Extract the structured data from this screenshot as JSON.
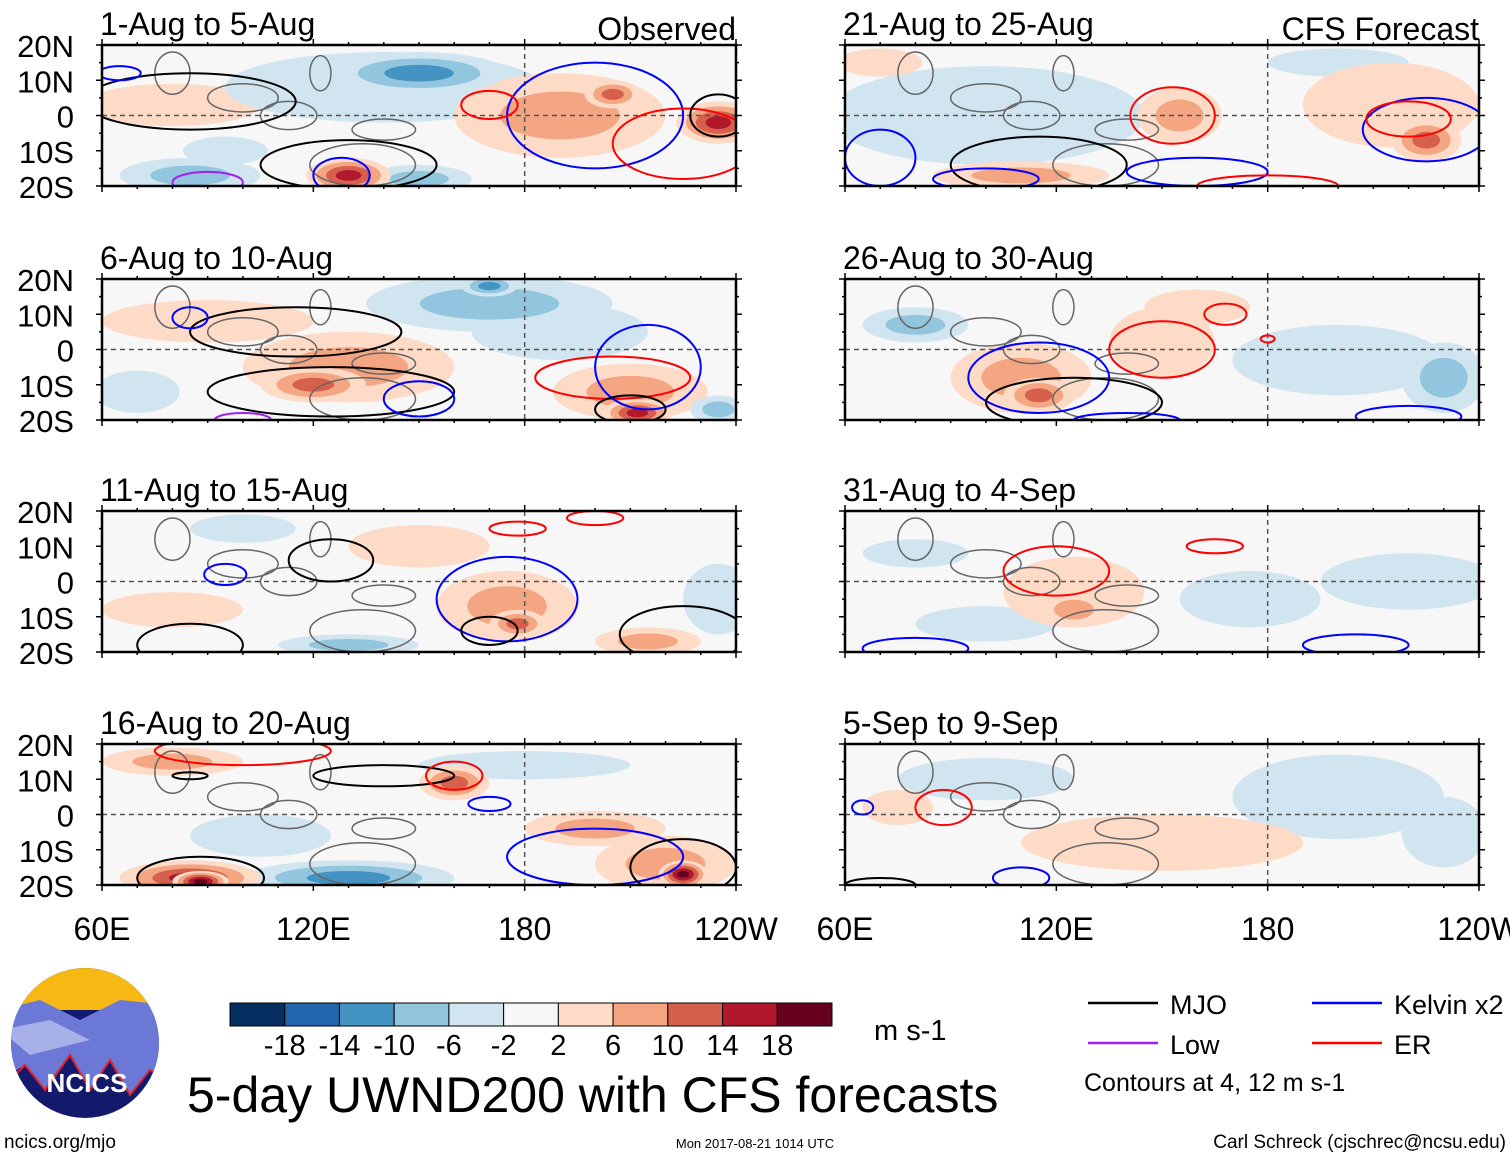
{
  "title": "5-day UWND200 with CFS forecasts",
  "footer": {
    "left": "ncics.org/mjo",
    "center": "Mon 2017-08-21 1014 UTC",
    "right": "Carl Schreck (cjschrec@ncsu.edu)"
  },
  "logo_text": "NCICS",
  "legend": {
    "items": [
      {
        "label": "MJO",
        "color": "#000000"
      },
      {
        "label": "Kelvin x2",
        "color": "#0000ff"
      },
      {
        "label": "Low",
        "color": "#a020f0"
      },
      {
        "label": "ER",
        "color": "#ff0000"
      }
    ],
    "note": "Contours at 4, 12 m s-1"
  },
  "chart_data": {
    "type": "heatmap",
    "variable": "UWND200 anomaly",
    "units": "m s-1",
    "colorbar": {
      "labels": [
        "-18",
        "-14",
        "-10",
        "-6",
        "-2",
        "2",
        "6",
        "10",
        "14",
        "18"
      ],
      "colors": [
        "#053061",
        "#2166ac",
        "#4393c3",
        "#92c5de",
        "#d1e5f0",
        "#f7f7f7",
        "#fddbc7",
        "#f4a582",
        "#d6604d",
        "#b2182b",
        "#67001f"
      ],
      "levels": [
        -18,
        -14,
        -10,
        -6,
        -2,
        2,
        6,
        10,
        14,
        18
      ]
    },
    "column_labels": [
      "Observed",
      "CFS Forecast"
    ],
    "lon_ticks": [
      "60E",
      "120E",
      "180",
      "120W"
    ],
    "lon_range": [
      60,
      240
    ],
    "lat_ticks": [
      "20N",
      "10N",
      "0",
      "10S",
      "20S"
    ],
    "lat_range": [
      -20,
      20
    ],
    "panels": [
      {
        "title": "1-Aug to 5-Aug",
        "col": 0,
        "row": 0,
        "blobs": [
          [
            80,
            3,
            25,
            6,
            3
          ],
          [
            140,
            8,
            45,
            10,
            -4
          ],
          [
            150,
            12,
            25,
            6,
            -12
          ],
          [
            190,
            0,
            30,
            12,
            8
          ],
          [
            205,
            6,
            8,
            4,
            12
          ],
          [
            130,
            -17,
            12,
            5,
            14
          ],
          [
            235,
            -2,
            12,
            6,
            14
          ],
          [
            85,
            -17,
            20,
            5,
            -6
          ],
          [
            150,
            -18,
            15,
            4,
            -6
          ],
          [
            95,
            -10,
            12,
            4,
            -2
          ]
        ],
        "contours": [
          [
            "mjo",
            85,
            4,
            30,
            8
          ],
          [
            "mjo",
            130,
            -14,
            25,
            7
          ],
          [
            "kelvin",
            200,
            0,
            25,
            15
          ],
          [
            "er",
            170,
            3,
            8,
            4
          ],
          [
            "kelvin",
            128,
            -17,
            8,
            5
          ],
          [
            "er",
            225,
            -8,
            20,
            10
          ],
          [
            "low",
            90,
            -19,
            10,
            3
          ],
          [
            "mjo",
            235,
            0,
            8,
            6
          ],
          [
            "kelvin",
            65,
            12,
            6,
            2
          ]
        ]
      },
      {
        "title": "6-Aug to 10-Aug",
        "col": 0,
        "row": 1,
        "blobs": [
          [
            170,
            13,
            35,
            8,
            -6
          ],
          [
            170,
            18,
            8,
            3,
            -12
          ],
          [
            90,
            8,
            30,
            6,
            4
          ],
          [
            130,
            -5,
            30,
            10,
            6
          ],
          [
            120,
            -10,
            15,
            5,
            10
          ],
          [
            210,
            -12,
            22,
            8,
            8
          ],
          [
            212,
            -18,
            10,
            4,
            14
          ],
          [
            190,
            5,
            25,
            8,
            -3
          ],
          [
            70,
            -12,
            12,
            6,
            -3
          ],
          [
            235,
            -17,
            8,
            4,
            -8
          ]
        ],
        "contours": [
          [
            "mjo",
            115,
            5,
            30,
            7
          ],
          [
            "mjo",
            125,
            -12,
            35,
            7
          ],
          [
            "kelvin",
            150,
            -14,
            10,
            5
          ],
          [
            "er",
            205,
            -8,
            22,
            6
          ],
          [
            "kelvin",
            215,
            -5,
            15,
            12
          ],
          [
            "mjo",
            210,
            -17,
            10,
            4
          ],
          [
            "low",
            100,
            -20,
            8,
            2
          ],
          [
            "kelvin",
            85,
            9,
            5,
            3
          ]
        ]
      },
      {
        "title": "11-Aug to 15-Aug",
        "col": 0,
        "row": 2,
        "blobs": [
          [
            175,
            -7,
            20,
            10,
            8
          ],
          [
            178,
            -12,
            8,
            4,
            12
          ],
          [
            215,
            -17,
            15,
            4,
            8
          ],
          [
            130,
            -18,
            20,
            3,
            -8
          ],
          [
            80,
            -8,
            20,
            5,
            3
          ],
          [
            235,
            -5,
            10,
            10,
            -4
          ],
          [
            150,
            10,
            20,
            6,
            3
          ],
          [
            100,
            15,
            15,
            4,
            -2
          ]
        ],
        "contours": [
          [
            "mjo",
            125,
            6,
            12,
            6
          ],
          [
            "kelvin",
            175,
            -5,
            20,
            12
          ],
          [
            "mjo",
            170,
            -14,
            8,
            4
          ],
          [
            "mjo",
            85,
            -18,
            15,
            6
          ],
          [
            "mjo",
            225,
            -15,
            18,
            8
          ],
          [
            "kelvin",
            95,
            2,
            6,
            3
          ],
          [
            "er",
            178,
            15,
            8,
            2
          ],
          [
            "er",
            200,
            18,
            8,
            2
          ]
        ]
      },
      {
        "title": "16-Aug to 20-Aug",
        "col": 0,
        "row": 3,
        "blobs": [
          [
            80,
            15,
            20,
            4,
            6
          ],
          [
            85,
            -18,
            20,
            5,
            14
          ],
          [
            88,
            -19,
            8,
            3,
            18
          ],
          [
            130,
            -18,
            30,
            5,
            -10
          ],
          [
            160,
            9,
            10,
            5,
            10
          ],
          [
            220,
            -14,
            20,
            8,
            8
          ],
          [
            225,
            -17,
            7,
            4,
            18
          ],
          [
            200,
            -4,
            20,
            5,
            8
          ],
          [
            105,
            -6,
            20,
            6,
            -4
          ],
          [
            180,
            14,
            30,
            4,
            -3
          ]
        ],
        "contours": [
          [
            "mjo",
            88,
            -18,
            18,
            6
          ],
          [
            "mjo",
            140,
            11,
            20,
            3
          ],
          [
            "er",
            100,
            18,
            25,
            4
          ],
          [
            "er",
            160,
            11,
            8,
            4
          ],
          [
            "kelvin",
            200,
            -12,
            25,
            8
          ],
          [
            "mjo",
            225,
            -15,
            15,
            8
          ],
          [
            "kelvin",
            170,
            3,
            6,
            2
          ],
          [
            "mjo",
            85,
            11,
            5,
            1
          ]
        ]
      },
      {
        "title": "21-Aug to 25-Aug",
        "col": 1,
        "row": 0,
        "blobs": [
          [
            100,
            0,
            45,
            14,
            -3
          ],
          [
            215,
            3,
            25,
            12,
            5
          ],
          [
            225,
            -7,
            10,
            6,
            12
          ],
          [
            155,
            0,
            12,
            8,
            6
          ],
          [
            110,
            -17,
            25,
            4,
            8
          ],
          [
            70,
            15,
            12,
            4,
            3
          ],
          [
            200,
            15,
            20,
            4,
            -2
          ]
        ],
        "contours": [
          [
            "mjo",
            115,
            -14,
            25,
            8
          ],
          [
            "kelvin",
            225,
            -4,
            18,
            9
          ],
          [
            "er",
            220,
            -1,
            12,
            5
          ],
          [
            "er",
            153,
            0,
            12,
            8
          ],
          [
            "kelvin",
            160,
            -16,
            20,
            4
          ],
          [
            "kelvin",
            70,
            -12,
            10,
            8
          ],
          [
            "kelvin",
            100,
            -18,
            15,
            3
          ],
          [
            "er",
            180,
            -20,
            20,
            3
          ]
        ]
      },
      {
        "title": "26-Aug to 30-Aug",
        "col": 1,
        "row": 1,
        "blobs": [
          [
            110,
            -8,
            20,
            10,
            8
          ],
          [
            115,
            -13,
            10,
            5,
            12
          ],
          [
            150,
            2,
            15,
            10,
            4
          ],
          [
            80,
            7,
            15,
            5,
            -6
          ],
          [
            230,
            -8,
            12,
            10,
            -6
          ],
          [
            200,
            -3,
            30,
            10,
            -2
          ],
          [
            160,
            12,
            15,
            5,
            3
          ]
        ],
        "contours": [
          [
            "kelvin",
            115,
            -8,
            20,
            10
          ],
          [
            "er",
            150,
            0,
            15,
            8
          ],
          [
            "mjo",
            125,
            -15,
            25,
            7
          ],
          [
            "er",
            168,
            10,
            6,
            3
          ],
          [
            "kelvin",
            220,
            -19,
            15,
            3
          ],
          [
            "kelvin",
            140,
            -20,
            15,
            2
          ],
          [
            "er",
            180,
            3,
            2,
            1
          ]
        ]
      },
      {
        "title": "31-Aug to 4-Sep",
        "col": 1,
        "row": 2,
        "blobs": [
          [
            125,
            -3,
            20,
            10,
            5
          ],
          [
            125,
            -8,
            10,
            5,
            8
          ],
          [
            220,
            0,
            25,
            8,
            -3
          ],
          [
            100,
            -12,
            20,
            5,
            -2
          ],
          [
            175,
            -5,
            20,
            8,
            -2
          ],
          [
            80,
            8,
            15,
            4,
            -2
          ]
        ],
        "contours": [
          [
            "er",
            120,
            3,
            15,
            7
          ],
          [
            "er",
            165,
            10,
            8,
            2
          ],
          [
            "kelvin",
            80,
            -19,
            15,
            3
          ],
          [
            "kelvin",
            205,
            -18,
            15,
            3
          ]
        ]
      },
      {
        "title": "5-Sep to 9-Sep",
        "col": 1,
        "row": 3,
        "blobs": [
          [
            75,
            2,
            10,
            5,
            4
          ],
          [
            150,
            -8,
            40,
            8,
            3
          ],
          [
            100,
            10,
            25,
            6,
            -2
          ],
          [
            230,
            -5,
            12,
            10,
            -4
          ],
          [
            200,
            5,
            30,
            12,
            -2
          ]
        ],
        "contours": [
          [
            "er",
            88,
            2,
            8,
            5
          ],
          [
            "kelvin",
            110,
            -18,
            8,
            3
          ],
          [
            "mjo",
            70,
            -20,
            10,
            2
          ],
          [
            "kelvin",
            65,
            2,
            3,
            2
          ]
        ]
      }
    ]
  }
}
